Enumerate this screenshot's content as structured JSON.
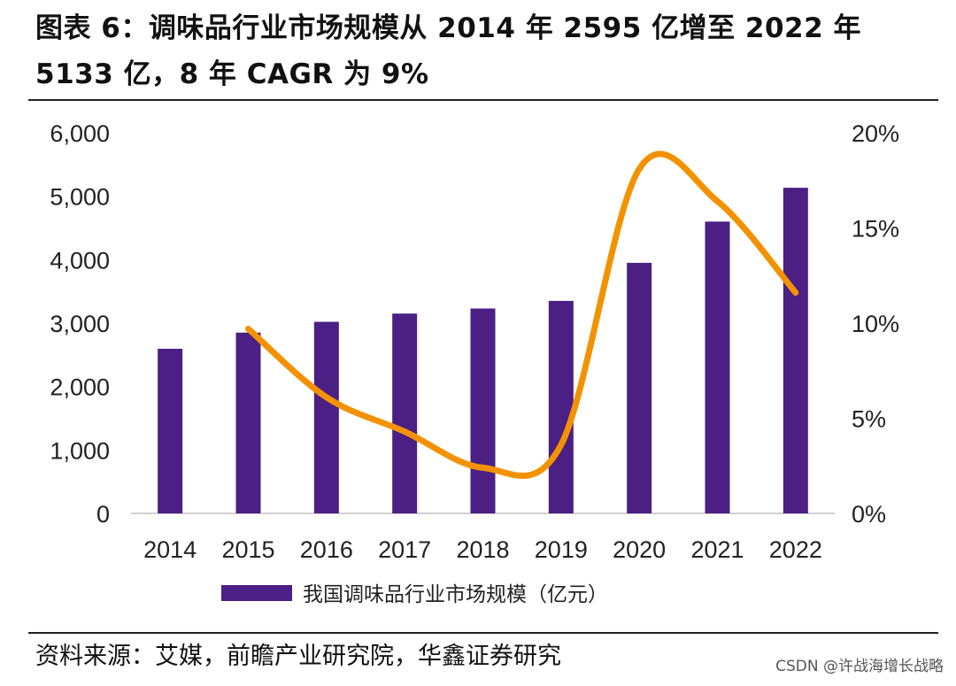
{
  "title": "图表 6：调味品行业市场规模从 2014 年 2595 亿增至 2022 年 5133 亿，8 年 CAGR 为 9%",
  "source": "资料来源：艾媒，前瞻产业研究院，华鑫证券研究",
  "watermark": "CSDN @许战海增长战略",
  "colors": {
    "bar": "#4b1f84",
    "line": "#f39200",
    "axis": "#d0d0d0",
    "text": "#222222"
  },
  "chart_data": {
    "type": "bar",
    "categories": [
      "2014",
      "2015",
      "2016",
      "2017",
      "2018",
      "2019",
      "2020",
      "2021",
      "2022"
    ],
    "series": [
      {
        "name": "我国调味品行业市场规模（亿元）",
        "type": "bar",
        "axis": "left",
        "values": [
          2595,
          2850,
          3020,
          3150,
          3230,
          3350,
          3950,
          4600,
          5133
        ]
      },
      {
        "type": "line",
        "axis": "right",
        "smooth": true,
        "values": [
          null,
          9.7,
          6.1,
          4.3,
          2.4,
          3.6,
          18.1,
          16.4,
          11.6
        ]
      }
    ],
    "y_left": {
      "min": 0,
      "max": 6000,
      "ticks": [
        "0",
        "1,000",
        "2,000",
        "3,000",
        "4,000",
        "5,000",
        "6,000"
      ]
    },
    "y_right": {
      "min": 0,
      "max": 20,
      "ticks": [
        "0%",
        "5%",
        "10%",
        "15%",
        "20%"
      ]
    },
    "legend": {
      "position": "bottom",
      "entries": [
        "我国调味品行业市场规模（亿元）"
      ]
    },
    "grid": false
  }
}
